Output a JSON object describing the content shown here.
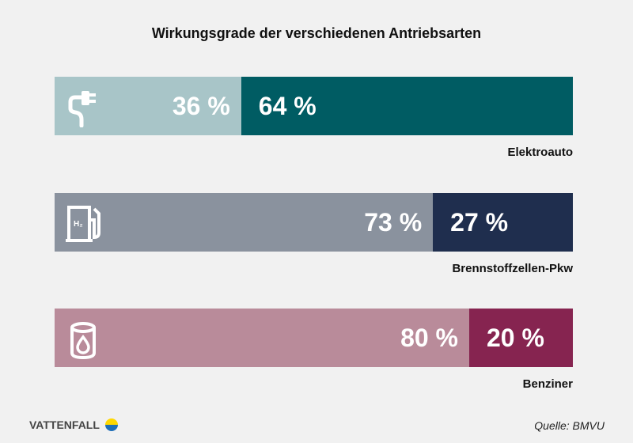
{
  "chart_data": {
    "type": "bar",
    "stacked": true,
    "orientation": "horizontal",
    "title": "Wirkungsgrade der verschiedenen Antriebsarten",
    "categories": [
      "Elektroauto",
      "Brennstoffzellen-Pkw",
      "Benziner"
    ],
    "series": [
      {
        "values": [
          36,
          73,
          80
        ],
        "labels": [
          "36 %",
          "73 %",
          "80 %"
        ],
        "colors": [
          "#a8c5c8",
          "#8a929e",
          "#b98b9a"
        ]
      },
      {
        "values": [
          64,
          27,
          20
        ],
        "labels": [
          "64 %",
          "27 %",
          "20 %"
        ],
        "colors": [
          "#005c63",
          "#1f2e4e",
          "#862450"
        ]
      }
    ],
    "icons": [
      "plug-icon",
      "hydrogen-pump-icon",
      "fuel-barrel-icon"
    ],
    "xlim": [
      0,
      100
    ]
  },
  "footer": {
    "brand": "VATTENFALL",
    "source": "Quelle: BMVU"
  }
}
